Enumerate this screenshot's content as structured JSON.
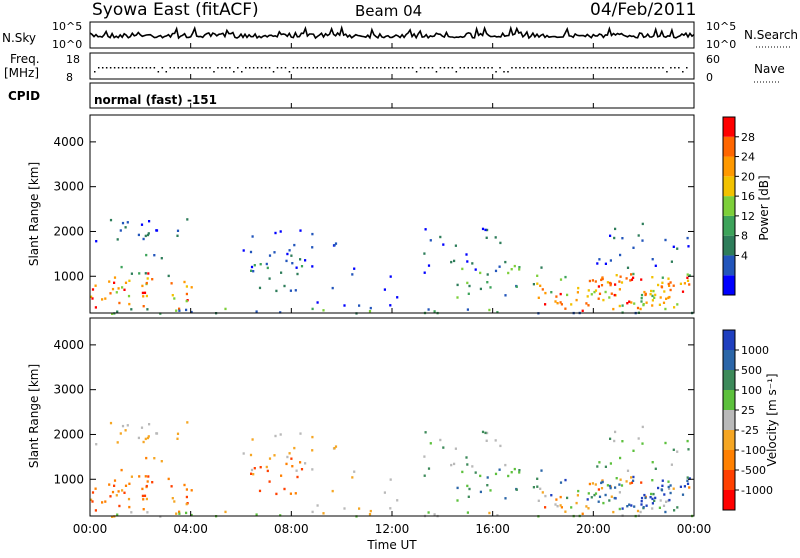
{
  "header": {
    "title": "Syowa East (fitACF)",
    "beam": "Beam 04",
    "date": "04/Feb/2011"
  },
  "strip_panels": {
    "nsky_label": "N.Sky",
    "nsky_ticks": [
      "10^5",
      "10^0"
    ],
    "nsearch_label": "N.Search",
    "nsearch_ticks": [
      "10^5",
      "10^0"
    ],
    "freq_label_1": "Freq.",
    "freq_label_2": "[MHz]",
    "freq_ticks": [
      "18",
      "8"
    ],
    "nave_label": "Nave",
    "nave_ticks": [
      "60",
      "0"
    ],
    "cpid_label": "CPID",
    "cpid_value": "normal (fast) -151"
  },
  "chart_data": [
    {
      "type": "heatmap",
      "name": "power",
      "ylabel": "Slant Range [km]",
      "ylim": [
        180,
        4600
      ],
      "yticks": [
        "4000",
        "3000",
        "2000",
        "1000"
      ],
      "colorbar_label": "Power [dB]",
      "colorbar_ticks": [
        "28",
        "24",
        "20",
        "16",
        "12",
        "8",
        "4"
      ],
      "colors": [
        "#0000ff",
        "#2255bb",
        "#2e7d5a",
        "#3da35a",
        "#7dcf3a",
        "#f2c200",
        "#ff9900",
        "#ff6600",
        "#ff0000"
      ]
    },
    {
      "type": "heatmap",
      "name": "velocity",
      "ylabel": "Slant Range [km]",
      "ylim": [
        180,
        4600
      ],
      "yticks": [
        "4000",
        "3000",
        "2000",
        "1000"
      ],
      "colorbar_label": "Velocity [m s⁻¹]",
      "colorbar_ticks": [
        "1000",
        "500",
        "100",
        "25",
        "-25",
        "-100",
        "-500",
        "-1000"
      ],
      "colors": [
        "#1f3fbf",
        "#2b66a8",
        "#3d8a5a",
        "#5cc03c",
        "#b9b9b9",
        "#f5a623",
        "#ff8000",
        "#ff4000",
        "#ff0000"
      ],
      "xlabel": "Time UT",
      "xticks": [
        "00:00",
        "04:00",
        "08:00",
        "12:00",
        "16:00",
        "20:00",
        "00:00"
      ]
    }
  ]
}
